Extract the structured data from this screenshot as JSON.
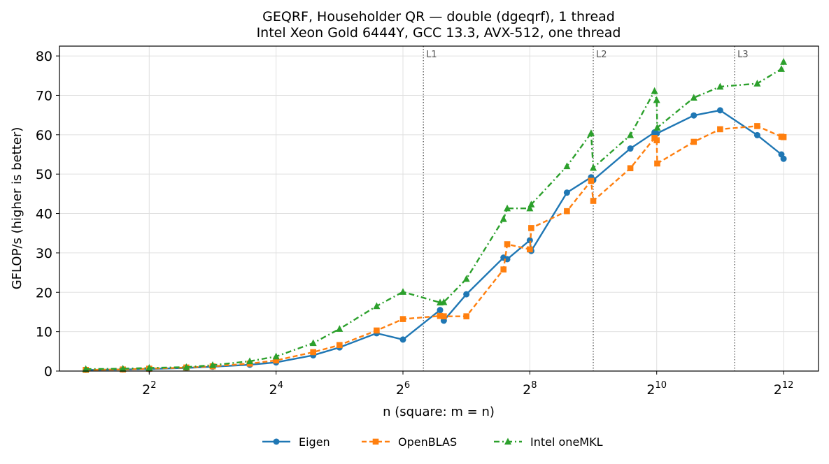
{
  "chart_data": {
    "type": "line",
    "title": "GEQRF, Householder QR — double (dgeqrf), 1 thread",
    "subtitle": "Intel Xeon Gold 6444Y, GCC 13.3, AVX-512, one thread",
    "xlabel": "n (square: m = n)",
    "ylabel": "GFLOP/s (higher is better)",
    "x_scale": "log2",
    "xlim": [
      1.5,
      6000
    ],
    "ylim": [
      0,
      82.5
    ],
    "x_ticks": [
      {
        "base": "2",
        "exp": "2",
        "value": 4
      },
      {
        "base": "2",
        "exp": "4",
        "value": 16
      },
      {
        "base": "2",
        "exp": "6",
        "value": 64
      },
      {
        "base": "2",
        "exp": "8",
        "value": 256
      },
      {
        "base": "2",
        "exp": "10",
        "value": 1024
      },
      {
        "base": "2",
        "exp": "12",
        "value": 4096
      }
    ],
    "y_ticks": [
      0,
      10,
      20,
      30,
      40,
      50,
      60,
      70,
      80
    ],
    "grid": true,
    "legend_position": "bottom-center",
    "cache_lines": [
      {
        "label": "L1",
        "x": 80
      },
      {
        "label": "L2",
        "x": 512
      },
      {
        "label": "L3",
        "x": 2400
      }
    ],
    "series": [
      {
        "name": "Eigen",
        "color": "#1f77b4",
        "marker": "circle",
        "linestyle": "solid",
        "points": [
          [
            2,
            0.3
          ],
          [
            3,
            0.4
          ],
          [
            4,
            0.5
          ],
          [
            6,
            0.8
          ],
          [
            8,
            1.1
          ],
          [
            12,
            1.6
          ],
          [
            16,
            2.2
          ],
          [
            24,
            4.0
          ],
          [
            32,
            6.0
          ],
          [
            48,
            9.6
          ],
          [
            64,
            8.0
          ],
          [
            96,
            15.5
          ],
          [
            100,
            12.8
          ],
          [
            128,
            19.5
          ],
          [
            192,
            28.8
          ],
          [
            200,
            28.4
          ],
          [
            256,
            33.2
          ],
          [
            260,
            30.5
          ],
          [
            384,
            45.3
          ],
          [
            500,
            49.2
          ],
          [
            512,
            48.5
          ],
          [
            768,
            56.5
          ],
          [
            1000,
            60.6
          ],
          [
            1024,
            60.3
          ],
          [
            1536,
            64.9
          ],
          [
            2048,
            66.2
          ],
          [
            3072,
            59.9
          ],
          [
            4000,
            55.0
          ],
          [
            4096,
            53.9
          ]
        ]
      },
      {
        "name": "OpenBLAS",
        "color": "#ff7f0e",
        "marker": "square",
        "linestyle": "dashed",
        "points": [
          [
            2,
            0.3
          ],
          [
            3,
            0.4
          ],
          [
            4,
            0.6
          ],
          [
            6,
            0.9
          ],
          [
            8,
            1.2
          ],
          [
            12,
            1.9
          ],
          [
            16,
            2.7
          ],
          [
            24,
            4.8
          ],
          [
            32,
            6.6
          ],
          [
            48,
            10.3
          ],
          [
            64,
            13.2
          ],
          [
            96,
            14.0
          ],
          [
            100,
            13.9
          ],
          [
            128,
            13.9
          ],
          [
            192,
            25.8
          ],
          [
            200,
            32.2
          ],
          [
            256,
            30.9
          ],
          [
            260,
            36.3
          ],
          [
            384,
            40.6
          ],
          [
            500,
            48.3
          ],
          [
            512,
            43.2
          ],
          [
            768,
            51.5
          ],
          [
            1000,
            59.2
          ],
          [
            1024,
            58.6
          ],
          [
            1030,
            52.7
          ],
          [
            1536,
            58.2
          ],
          [
            2048,
            61.4
          ],
          [
            3072,
            62.2
          ],
          [
            4000,
            59.5
          ],
          [
            4096,
            59.4
          ]
        ]
      },
      {
        "name": "Intel oneMKL",
        "color": "#2ca02c",
        "marker": "triangle",
        "linestyle": "dashdot",
        "points": [
          [
            2,
            0.5
          ],
          [
            3,
            0.6
          ],
          [
            4,
            0.8
          ],
          [
            6,
            1.0
          ],
          [
            8,
            1.5
          ],
          [
            12,
            2.5
          ],
          [
            16,
            3.7
          ],
          [
            24,
            7.1
          ],
          [
            32,
            10.7
          ],
          [
            48,
            16.5
          ],
          [
            64,
            20.1
          ],
          [
            96,
            17.4
          ],
          [
            100,
            17.5
          ],
          [
            128,
            23.4
          ],
          [
            192,
            38.6
          ],
          [
            200,
            41.3
          ],
          [
            256,
            41.3
          ],
          [
            260,
            42.3
          ],
          [
            384,
            52.0
          ],
          [
            500,
            60.4
          ],
          [
            512,
            51.6
          ],
          [
            768,
            59.9
          ],
          [
            1000,
            71.1
          ],
          [
            1024,
            68.8
          ],
          [
            1030,
            61.8
          ],
          [
            1536,
            69.4
          ],
          [
            2048,
            72.2
          ],
          [
            3072,
            73.0
          ],
          [
            4000,
            76.7
          ],
          [
            4096,
            78.5
          ]
        ]
      }
    ]
  }
}
